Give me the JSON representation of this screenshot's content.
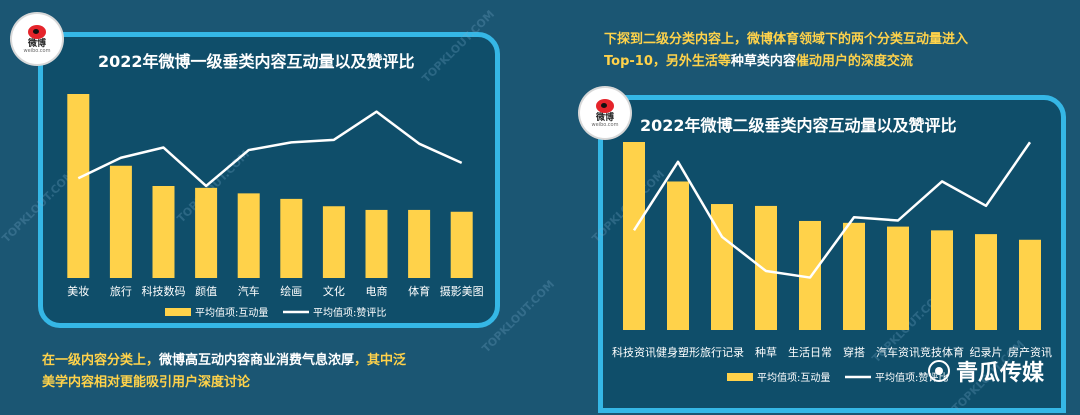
{
  "notes": {
    "left_part1": "在一级内容分类上，",
    "left_part2": "微博高互动内容商业消费气息浓厚",
    "left_part3": "，其中泛",
    "left_part4": "美学内容相对更能吸引用户深度讨论",
    "right_part1": "下探到二级分类内容上，",
    "right_part2": "微博体育领域下的两个分类互动量进入",
    "right_part3": "Top-10，",
    "right_part4": "另外生活等",
    "right_part5": "种草类内容",
    "right_part6": "催动用户的深度交流"
  },
  "logo": {
    "name": "微博",
    "sub": "weibo.com"
  },
  "watermark": "TOPKLOUT.COM",
  "brand": "青瓜传媒",
  "colors": {
    "bar": "#ffd24a",
    "line": "#ffffff",
    "panel_border": "#35b7e6"
  },
  "chart_data": [
    {
      "type": "bar",
      "title": "2022年微博一级垂类内容互动量以及赞评比",
      "categories": [
        "美妆",
        "旅行",
        "科技数码",
        "颜值",
        "汽车",
        "绘画",
        "文化",
        "电商",
        "体育",
        "摄影美图"
      ],
      "series": [
        {
          "name": "平均值项:互动量",
          "type": "bar",
          "values": [
            100,
            61,
            50,
            49,
            46,
            43,
            39,
            37,
            37,
            36
          ]
        },
        {
          "name": "平均值项:赞评比",
          "type": "line",
          "values": [
            42,
            58,
            66,
            36,
            64,
            70,
            72,
            94,
            69,
            54
          ]
        }
      ],
      "legend": "bottom"
    },
    {
      "type": "bar",
      "title": "2022年微博二级垂类内容互动量以及赞评比",
      "categories": [
        "科技资讯",
        "健身塑形",
        "旅行记录",
        "种草",
        "生活日常",
        "穿搭",
        "汽车资讯",
        "竞技体育",
        "纪录片",
        "房产资讯"
      ],
      "series": [
        {
          "name": "平均值项:互动量",
          "type": "bar",
          "values": [
            100,
            79,
            67,
            66,
            58,
            57,
            55,
            53,
            51,
            48
          ]
        },
        {
          "name": "平均值项:赞评比",
          "type": "line",
          "values": [
            44,
            86,
            40,
            19,
            15,
            52,
            50,
            74,
            59,
            98
          ]
        }
      ],
      "legend": "bottom"
    }
  ]
}
